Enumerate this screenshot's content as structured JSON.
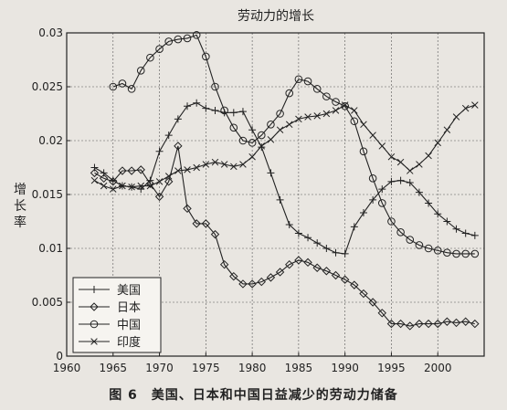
{
  "chart_data": {
    "type": "line",
    "title": "劳动力的增长",
    "ylabel": "增长率",
    "xlabel": "",
    "xlim": [
      1960,
      2005
    ],
    "ylim": [
      0,
      0.03
    ],
    "x_ticks": [
      1960,
      1965,
      1970,
      1975,
      1980,
      1985,
      1990,
      1995,
      2000
    ],
    "y_ticks": [
      {
        "v": 0,
        "label": "0"
      },
      {
        "v": 0.005,
        "label": "0.005"
      },
      {
        "v": 0.01,
        "label": "0.01"
      },
      {
        "v": 0.015,
        "label": "0.015"
      },
      {
        "v": 0.02,
        "label": "0.02"
      },
      {
        "v": 0.025,
        "label": "0.025"
      },
      {
        "v": 0.03,
        "label": "0.03"
      }
    ],
    "grid": true,
    "legend": "bottom-left",
    "series": [
      {
        "name": "美国",
        "marker": "plus",
        "points": [
          [
            1963,
            0.0175
          ],
          [
            1964,
            0.017
          ],
          [
            1965,
            0.0163
          ],
          [
            1966,
            0.0158
          ],
          [
            1967,
            0.0157
          ],
          [
            1968,
            0.0155
          ],
          [
            1969,
            0.0163
          ],
          [
            1970,
            0.019
          ],
          [
            1971,
            0.0205
          ],
          [
            1972,
            0.022
          ],
          [
            1973,
            0.0232
          ],
          [
            1974,
            0.0235
          ],
          [
            1975,
            0.023
          ],
          [
            1976,
            0.0228
          ],
          [
            1977,
            0.0226
          ],
          [
            1978,
            0.0226
          ],
          [
            1979,
            0.0227
          ],
          [
            1980,
            0.021
          ],
          [
            1981,
            0.0194
          ],
          [
            1982,
            0.017
          ],
          [
            1983,
            0.0145
          ],
          [
            1984,
            0.0122
          ],
          [
            1985,
            0.0114
          ],
          [
            1986,
            0.011
          ],
          [
            1987,
            0.0105
          ],
          [
            1988,
            0.01
          ],
          [
            1989,
            0.0096
          ],
          [
            1990,
            0.0095
          ],
          [
            1991,
            0.012
          ],
          [
            1992,
            0.0133
          ],
          [
            1993,
            0.0145
          ],
          [
            1994,
            0.0155
          ],
          [
            1995,
            0.0162
          ],
          [
            1996,
            0.0163
          ],
          [
            1997,
            0.0161
          ],
          [
            1998,
            0.0152
          ],
          [
            1999,
            0.0142
          ],
          [
            2000,
            0.0132
          ],
          [
            2001,
            0.0125
          ],
          [
            2002,
            0.0118
          ],
          [
            2003,
            0.0114
          ],
          [
            2004,
            0.0112
          ]
        ]
      },
      {
        "name": "日本",
        "marker": "diamond",
        "points": [
          [
            1963,
            0.017
          ],
          [
            1964,
            0.0165
          ],
          [
            1965,
            0.0162
          ],
          [
            1966,
            0.0172
          ],
          [
            1967,
            0.0172
          ],
          [
            1968,
            0.0173
          ],
          [
            1969,
            0.016
          ],
          [
            1970,
            0.0148
          ],
          [
            1971,
            0.0162
          ],
          [
            1972,
            0.0195
          ],
          [
            1973,
            0.0137
          ],
          [
            1974,
            0.0123
          ],
          [
            1975,
            0.0123
          ],
          [
            1976,
            0.0113
          ],
          [
            1977,
            0.0085
          ],
          [
            1978,
            0.0074
          ],
          [
            1979,
            0.0067
          ],
          [
            1980,
            0.0067
          ],
          [
            1981,
            0.0069
          ],
          [
            1982,
            0.0073
          ],
          [
            1983,
            0.0078
          ],
          [
            1984,
            0.0085
          ],
          [
            1985,
            0.0089
          ],
          [
            1986,
            0.0087
          ],
          [
            1987,
            0.0082
          ],
          [
            1988,
            0.0079
          ],
          [
            1989,
            0.0075
          ],
          [
            1990,
            0.0071
          ],
          [
            1991,
            0.0066
          ],
          [
            1992,
            0.0058
          ],
          [
            1993,
            0.005
          ],
          [
            1994,
            0.004
          ],
          [
            1995,
            0.003
          ],
          [
            1996,
            0.003
          ],
          [
            1997,
            0.0028
          ],
          [
            1998,
            0.003
          ],
          [
            1999,
            0.003
          ],
          [
            2000,
            0.003
          ],
          [
            2001,
            0.0032
          ],
          [
            2002,
            0.0031
          ],
          [
            2003,
            0.0032
          ],
          [
            2004,
            0.003
          ]
        ]
      },
      {
        "name": "中国",
        "marker": "circle",
        "points": [
          [
            1965,
            0.025
          ],
          [
            1966,
            0.0253
          ],
          [
            1967,
            0.0248
          ],
          [
            1968,
            0.0265
          ],
          [
            1969,
            0.0277
          ],
          [
            1970,
            0.0285
          ],
          [
            1971,
            0.0292
          ],
          [
            1972,
            0.0294
          ],
          [
            1973,
            0.0295
          ],
          [
            1974,
            0.0298
          ],
          [
            1975,
            0.0278
          ],
          [
            1976,
            0.025
          ],
          [
            1977,
            0.0228
          ],
          [
            1978,
            0.0212
          ],
          [
            1979,
            0.02
          ],
          [
            1980,
            0.0198
          ],
          [
            1981,
            0.0205
          ],
          [
            1982,
            0.0215
          ],
          [
            1983,
            0.0225
          ],
          [
            1984,
            0.0244
          ],
          [
            1985,
            0.0257
          ],
          [
            1986,
            0.0255
          ],
          [
            1987,
            0.0248
          ],
          [
            1988,
            0.0241
          ],
          [
            1989,
            0.0236
          ],
          [
            1990,
            0.0232
          ],
          [
            1991,
            0.0218
          ],
          [
            1992,
            0.019
          ],
          [
            1993,
            0.0165
          ],
          [
            1994,
            0.0142
          ],
          [
            1995,
            0.0125
          ],
          [
            1996,
            0.0115
          ],
          [
            1997,
            0.0108
          ],
          [
            1998,
            0.0103
          ],
          [
            1999,
            0.01
          ],
          [
            2000,
            0.0098
          ],
          [
            2001,
            0.0096
          ],
          [
            2002,
            0.0095
          ],
          [
            2003,
            0.0095
          ],
          [
            2004,
            0.0095
          ]
        ]
      },
      {
        "name": "印度",
        "marker": "x",
        "points": [
          [
            1963,
            0.0163
          ],
          [
            1964,
            0.0158
          ],
          [
            1965,
            0.0155
          ],
          [
            1966,
            0.0158
          ],
          [
            1967,
            0.0157
          ],
          [
            1968,
            0.0158
          ],
          [
            1969,
            0.0158
          ],
          [
            1970,
            0.0162
          ],
          [
            1971,
            0.0167
          ],
          [
            1972,
            0.0172
          ],
          [
            1973,
            0.0173
          ],
          [
            1974,
            0.0175
          ],
          [
            1975,
            0.0178
          ],
          [
            1976,
            0.018
          ],
          [
            1977,
            0.0178
          ],
          [
            1978,
            0.0176
          ],
          [
            1979,
            0.0178
          ],
          [
            1980,
            0.0185
          ],
          [
            1981,
            0.0195
          ],
          [
            1982,
            0.0201
          ],
          [
            1983,
            0.021
          ],
          [
            1984,
            0.0215
          ],
          [
            1985,
            0.022
          ],
          [
            1986,
            0.0222
          ],
          [
            1987,
            0.0223
          ],
          [
            1988,
            0.0225
          ],
          [
            1989,
            0.0228
          ],
          [
            1990,
            0.0233
          ],
          [
            1991,
            0.0228
          ],
          [
            1992,
            0.0215
          ],
          [
            1993,
            0.0205
          ],
          [
            1994,
            0.0195
          ],
          [
            1995,
            0.0185
          ],
          [
            1996,
            0.018
          ],
          [
            1997,
            0.0172
          ],
          [
            1998,
            0.0178
          ],
          [
            1999,
            0.0186
          ],
          [
            2000,
            0.0198
          ],
          [
            2001,
            0.021
          ],
          [
            2002,
            0.0222
          ],
          [
            2003,
            0.023
          ],
          [
            2004,
            0.0233
          ]
        ]
      }
    ]
  },
  "caption": "图 6　美国、日本和中国日益减少的劳动力储备"
}
